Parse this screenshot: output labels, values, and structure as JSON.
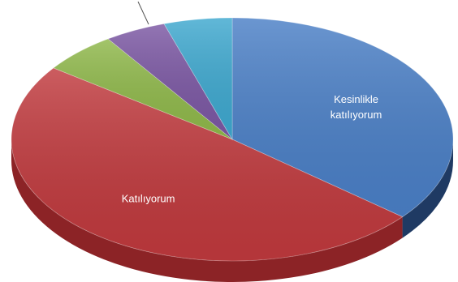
{
  "chart_data": {
    "type": "pie",
    "title": "",
    "style": "3d-exploded-free",
    "start_angle_deg": -90,
    "direction": "clockwise",
    "slices": [
      {
        "label": "Kesinlikle katılıyorum",
        "value": 36.0,
        "color": "#4a7fc6",
        "side_color": "#1f3a63"
      },
      {
        "label": "Katılıyorum",
        "value": 49.0,
        "color": "#c0393d",
        "side_color": "#8c2326"
      },
      {
        "label": "",
        "value": 5.5,
        "color": "#8fb84a",
        "side_color": "#5d7d2c"
      },
      {
        "label": "",
        "value": 4.5,
        "color": "#7b57a3",
        "side_color": "#4f3570"
      },
      {
        "label": "",
        "value": 5.0,
        "color": "#3ea8cf",
        "side_color": "#256d88"
      }
    ],
    "data_labels": [
      {
        "slice": 0,
        "lines": [
          "Kesinlikle",
          "katılıyorum"
        ]
      },
      {
        "slice": 1,
        "lines": [
          "Katılıyorum"
        ]
      }
    ]
  }
}
